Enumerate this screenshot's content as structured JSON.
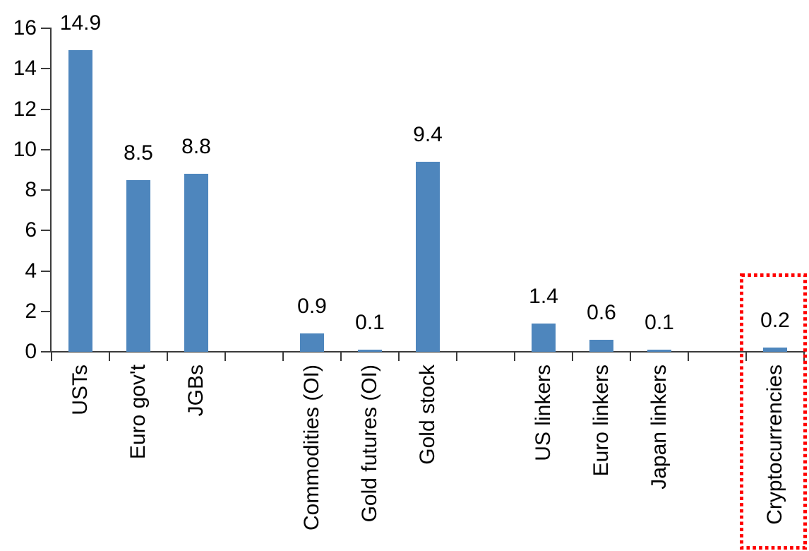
{
  "chart_data": {
    "type": "bar",
    "title": "",
    "xlabel": "",
    "ylabel": "",
    "ylim": [
      0,
      16
    ],
    "yticks": [
      0,
      2,
      4,
      6,
      8,
      10,
      12,
      14,
      16
    ],
    "grid": false,
    "legend": null,
    "categories": [
      "USTs",
      "Euro gov't",
      "JGBs",
      "Commodities (OI)",
      "Gold futures (OI)",
      "Gold stock",
      "US linkers",
      "Euro linkers",
      "Japan linkers",
      "Cryptocurrencies"
    ],
    "values": [
      14.9,
      8.5,
      8.8,
      0.9,
      0.1,
      9.4,
      1.4,
      0.6,
      0.1,
      0.2
    ],
    "value_labels": [
      "14.9",
      "8.5",
      "8.8",
      "0.9",
      "0.1",
      "9.4",
      "1.4",
      "0.6",
      "0.1",
      "0.2"
    ],
    "slots": [
      0,
      1,
      2,
      4,
      5,
      6,
      8,
      9,
      10,
      12
    ],
    "n_slots": 13,
    "highlight": {
      "category": "Cryptocurrencies",
      "shape": "red-dotted-rectangle",
      "color": "#FF0000"
    },
    "colors": {
      "bar": "#4E86BD",
      "axis": "#3B3B3B",
      "text": "#000000",
      "background": "#FFFFFF"
    }
  }
}
